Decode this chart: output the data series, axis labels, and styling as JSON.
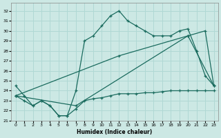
{
  "title": "",
  "xlabel": "Humidex (Indice chaleur)",
  "ylabel": "",
  "background_color": "#cce8e4",
  "grid_color": "#b0d8d4",
  "line_color": "#1a6b5e",
  "xlim": [
    -0.5,
    23.5
  ],
  "ylim": [
    21,
    32.8
  ],
  "xticks": [
    0,
    1,
    2,
    3,
    4,
    5,
    6,
    7,
    8,
    9,
    10,
    11,
    12,
    13,
    14,
    15,
    16,
    17,
    18,
    19,
    20,
    21,
    22,
    23
  ],
  "yticks": [
    21,
    22,
    23,
    24,
    25,
    26,
    27,
    28,
    29,
    30,
    31,
    32
  ],
  "series1_x": [
    0,
    1,
    2,
    3,
    4,
    5,
    6,
    7,
    8,
    9,
    10,
    11,
    12,
    13,
    14,
    15,
    16,
    17,
    18,
    19,
    20,
    21,
    22,
    23
  ],
  "series1_y": [
    24.5,
    23.5,
    22.5,
    23.0,
    22.5,
    21.5,
    21.5,
    24.0,
    29.0,
    29.5,
    30.5,
    31.5,
    32.0,
    31.0,
    30.5,
    30.0,
    29.5,
    29.5,
    29.5,
    30.0,
    30.2,
    28.0,
    25.5,
    24.5
  ],
  "series2_x": [
    0,
    1,
    2,
    3,
    4,
    5,
    6,
    7,
    8,
    9,
    10,
    11,
    12,
    13,
    14,
    15,
    16,
    17,
    18,
    19,
    20,
    21,
    22,
    23
  ],
  "series2_y": [
    23.5,
    23.0,
    22.5,
    23.0,
    22.5,
    21.5,
    21.5,
    22.2,
    23.0,
    23.2,
    23.3,
    23.5,
    23.7,
    23.7,
    23.7,
    23.8,
    23.8,
    23.9,
    24.0,
    24.0,
    24.0,
    24.0,
    24.0,
    24.0
  ],
  "series3_x": [
    0,
    12,
    20,
    22,
    23
  ],
  "series3_y": [
    23.5,
    27.5,
    29.5,
    30.0,
    24.5
  ],
  "series4_x": [
    0,
    7,
    20,
    23
  ],
  "series4_y": [
    23.5,
    22.5,
    29.5,
    24.5
  ]
}
